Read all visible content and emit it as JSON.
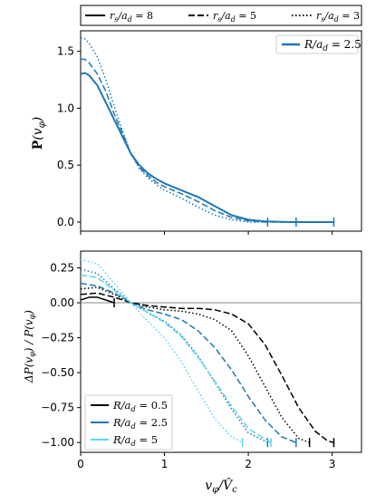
{
  "legend_top": {
    "items": [
      {
        "label": "r_s/a_d = 8",
        "dash": "solid"
      },
      {
        "label": "r_s/a_d = 5",
        "dash": "dashed"
      },
      {
        "label": "r_s/a_d = 3",
        "dash": "dotted"
      }
    ]
  },
  "colors": {
    "R05": "#000000",
    "R25": "#1f77b4",
    "R5": "#5bd5ee"
  },
  "chart_data": [
    {
      "type": "line",
      "panel": "top",
      "ylabel": "P(v_φ)",
      "xlim": [
        0,
        3.35
      ],
      "ylim": [
        -0.08,
        1.68
      ],
      "xticks": [
        0,
        1,
        2,
        3
      ],
      "yticks": [
        0.0,
        0.5,
        1.0,
        1.5
      ],
      "ytick_labels": [
        "0.0",
        "0.5",
        "1.0",
        "1.5"
      ],
      "legend": {
        "placement": "top-right",
        "entries": [
          {
            "label": "R/a_d = 2.5",
            "color": "#1f77b4"
          }
        ]
      },
      "series": [
        {
          "rs": 8,
          "dash": "solid",
          "color": "#1f77b4",
          "end_marker": 3.02,
          "x": [
            0,
            0.05,
            0.1,
            0.2,
            0.3,
            0.4,
            0.5,
            0.6,
            0.7,
            0.8,
            0.9,
            1.0,
            1.2,
            1.4,
            1.6,
            1.8,
            2.0,
            2.2,
            2.5,
            3.02
          ],
          "y": [
            1.3,
            1.31,
            1.29,
            1.2,
            1.05,
            0.9,
            0.75,
            0.6,
            0.5,
            0.43,
            0.38,
            0.34,
            0.28,
            0.22,
            0.14,
            0.06,
            0.02,
            0.005,
            0.0,
            0.0
          ]
        },
        {
          "rs": 5,
          "dash": "dashed",
          "color": "#1f77b4",
          "end_marker": 2.57,
          "x": [
            0,
            0.05,
            0.1,
            0.2,
            0.3,
            0.4,
            0.5,
            0.6,
            0.7,
            0.8,
            0.9,
            1.0,
            1.2,
            1.4,
            1.6,
            1.8,
            2.0,
            2.2,
            2.57
          ],
          "y": [
            1.43,
            1.43,
            1.4,
            1.3,
            1.15,
            0.95,
            0.78,
            0.6,
            0.48,
            0.41,
            0.35,
            0.31,
            0.25,
            0.18,
            0.1,
            0.04,
            0.01,
            0.0,
            0.0
          ]
        },
        {
          "rs": 3,
          "dash": "dotted",
          "color": "#1f77b4",
          "end_marker": 2.23,
          "x": [
            0,
            0.05,
            0.1,
            0.2,
            0.3,
            0.4,
            0.5,
            0.6,
            0.7,
            0.8,
            0.9,
            1.0,
            1.2,
            1.4,
            1.6,
            1.8,
            2.0,
            2.23
          ],
          "y": [
            1.62,
            1.61,
            1.57,
            1.45,
            1.25,
            1.02,
            0.8,
            0.6,
            0.47,
            0.39,
            0.33,
            0.28,
            0.21,
            0.13,
            0.06,
            0.02,
            0.0,
            0.0
          ]
        }
      ]
    },
    {
      "type": "line",
      "panel": "bottom",
      "xlabel": "v_φ / V̂_c",
      "ylabel": "ΔP(v_φ) / P(v_φ)",
      "xlim": [
        0,
        3.35
      ],
      "ylim": [
        -1.07,
        0.37
      ],
      "xticks": [
        0,
        1,
        2,
        3
      ],
      "xtick_labels": [
        "0",
        "1",
        "2",
        "3"
      ],
      "yticks": [
        0.25,
        0.0,
        -0.25,
        -0.5,
        -0.75,
        -1.0
      ],
      "ytick_labels": [
        "0.25",
        "0.00",
        "−0.25",
        "−0.50",
        "−0.75",
        "−1.00"
      ],
      "hline": 0,
      "legend": {
        "placement": "lower-left",
        "entries": [
          {
            "label": "R/a_d = 0.5",
            "color": "#000000"
          },
          {
            "label": "R/a_d = 2.5",
            "color": "#1f77b4"
          },
          {
            "label": "R/a_d = 5",
            "color": "#5bd5ee"
          }
        ]
      },
      "series": [
        {
          "R": 0.5,
          "rs": 8,
          "dash": "solid",
          "color": "#000000",
          "end_marker": 0.4,
          "x": [
            0,
            0.1,
            0.2,
            0.3,
            0.4
          ],
          "y": [
            0.02,
            0.04,
            0.04,
            0.02,
            0.0
          ]
        },
        {
          "R": 0.5,
          "rs": 5,
          "dash": "dashed",
          "color": "#000000",
          "end_marker": 3.02,
          "x": [
            0,
            0.2,
            0.4,
            0.6,
            0.8,
            1.0,
            1.2,
            1.4,
            1.6,
            1.8,
            2.0,
            2.2,
            2.4,
            2.6,
            2.8,
            2.95,
            3.02
          ],
          "y": [
            0.06,
            0.07,
            0.04,
            0.0,
            -0.02,
            -0.03,
            -0.04,
            -0.04,
            -0.05,
            -0.08,
            -0.15,
            -0.3,
            -0.52,
            -0.75,
            -0.92,
            -0.99,
            -1.0
          ]
        },
        {
          "R": 0.5,
          "rs": 3,
          "dash": "dotted",
          "color": "#000000",
          "end_marker": 2.73,
          "x": [
            0,
            0.2,
            0.4,
            0.6,
            0.8,
            1.0,
            1.2,
            1.4,
            1.6,
            1.8,
            2.0,
            2.2,
            2.4,
            2.6,
            2.73
          ],
          "y": [
            0.1,
            0.11,
            0.06,
            0.0,
            -0.03,
            -0.05,
            -0.06,
            -0.08,
            -0.12,
            -0.2,
            -0.38,
            -0.6,
            -0.82,
            -0.97,
            -1.0
          ]
        },
        {
          "R": 2.5,
          "rs": 5,
          "dash": "dashed",
          "color": "#1f77b4",
          "end_marker": 2.57,
          "x": [
            0,
            0.2,
            0.4,
            0.6,
            0.8,
            1.0,
            1.2,
            1.4,
            1.6,
            1.8,
            2.0,
            2.2,
            2.4,
            2.57
          ],
          "y": [
            0.14,
            0.12,
            0.07,
            0.0,
            -0.05,
            -0.08,
            -0.12,
            -0.2,
            -0.32,
            -0.48,
            -0.67,
            -0.84,
            -0.96,
            -1.0
          ]
        },
        {
          "R": 2.5,
          "rs": 3,
          "dash": "dotted",
          "color": "#1f77b4",
          "end_marker": 2.23,
          "x": [
            0,
            0.2,
            0.4,
            0.6,
            0.8,
            1.0,
            1.2,
            1.4,
            1.6,
            1.8,
            2.0,
            2.23
          ],
          "y": [
            0.24,
            0.21,
            0.1,
            0.0,
            -0.07,
            -0.13,
            -0.23,
            -0.38,
            -0.57,
            -0.76,
            -0.93,
            -1.0
          ]
        },
        {
          "R": 5,
          "rs": 5,
          "dash": "dashed",
          "color": "#5bd5ee",
          "end_marker": 2.27,
          "x": [
            0,
            0.2,
            0.4,
            0.6,
            0.8,
            1.0,
            1.2,
            1.4,
            1.6,
            1.8,
            2.0,
            2.27
          ],
          "y": [
            0.2,
            0.18,
            0.09,
            0.0,
            -0.07,
            -0.14,
            -0.24,
            -0.39,
            -0.56,
            -0.74,
            -0.9,
            -1.0
          ]
        },
        {
          "R": 5,
          "rs": 3,
          "dash": "dotted",
          "color": "#5bd5ee",
          "end_marker": 1.93,
          "x": [
            0,
            0.2,
            0.4,
            0.6,
            0.8,
            1.0,
            1.2,
            1.4,
            1.6,
            1.8,
            1.93
          ],
          "y": [
            0.31,
            0.28,
            0.14,
            0.0,
            -0.13,
            -0.25,
            -0.42,
            -0.63,
            -0.83,
            -0.96,
            -1.0
          ]
        }
      ]
    }
  ]
}
